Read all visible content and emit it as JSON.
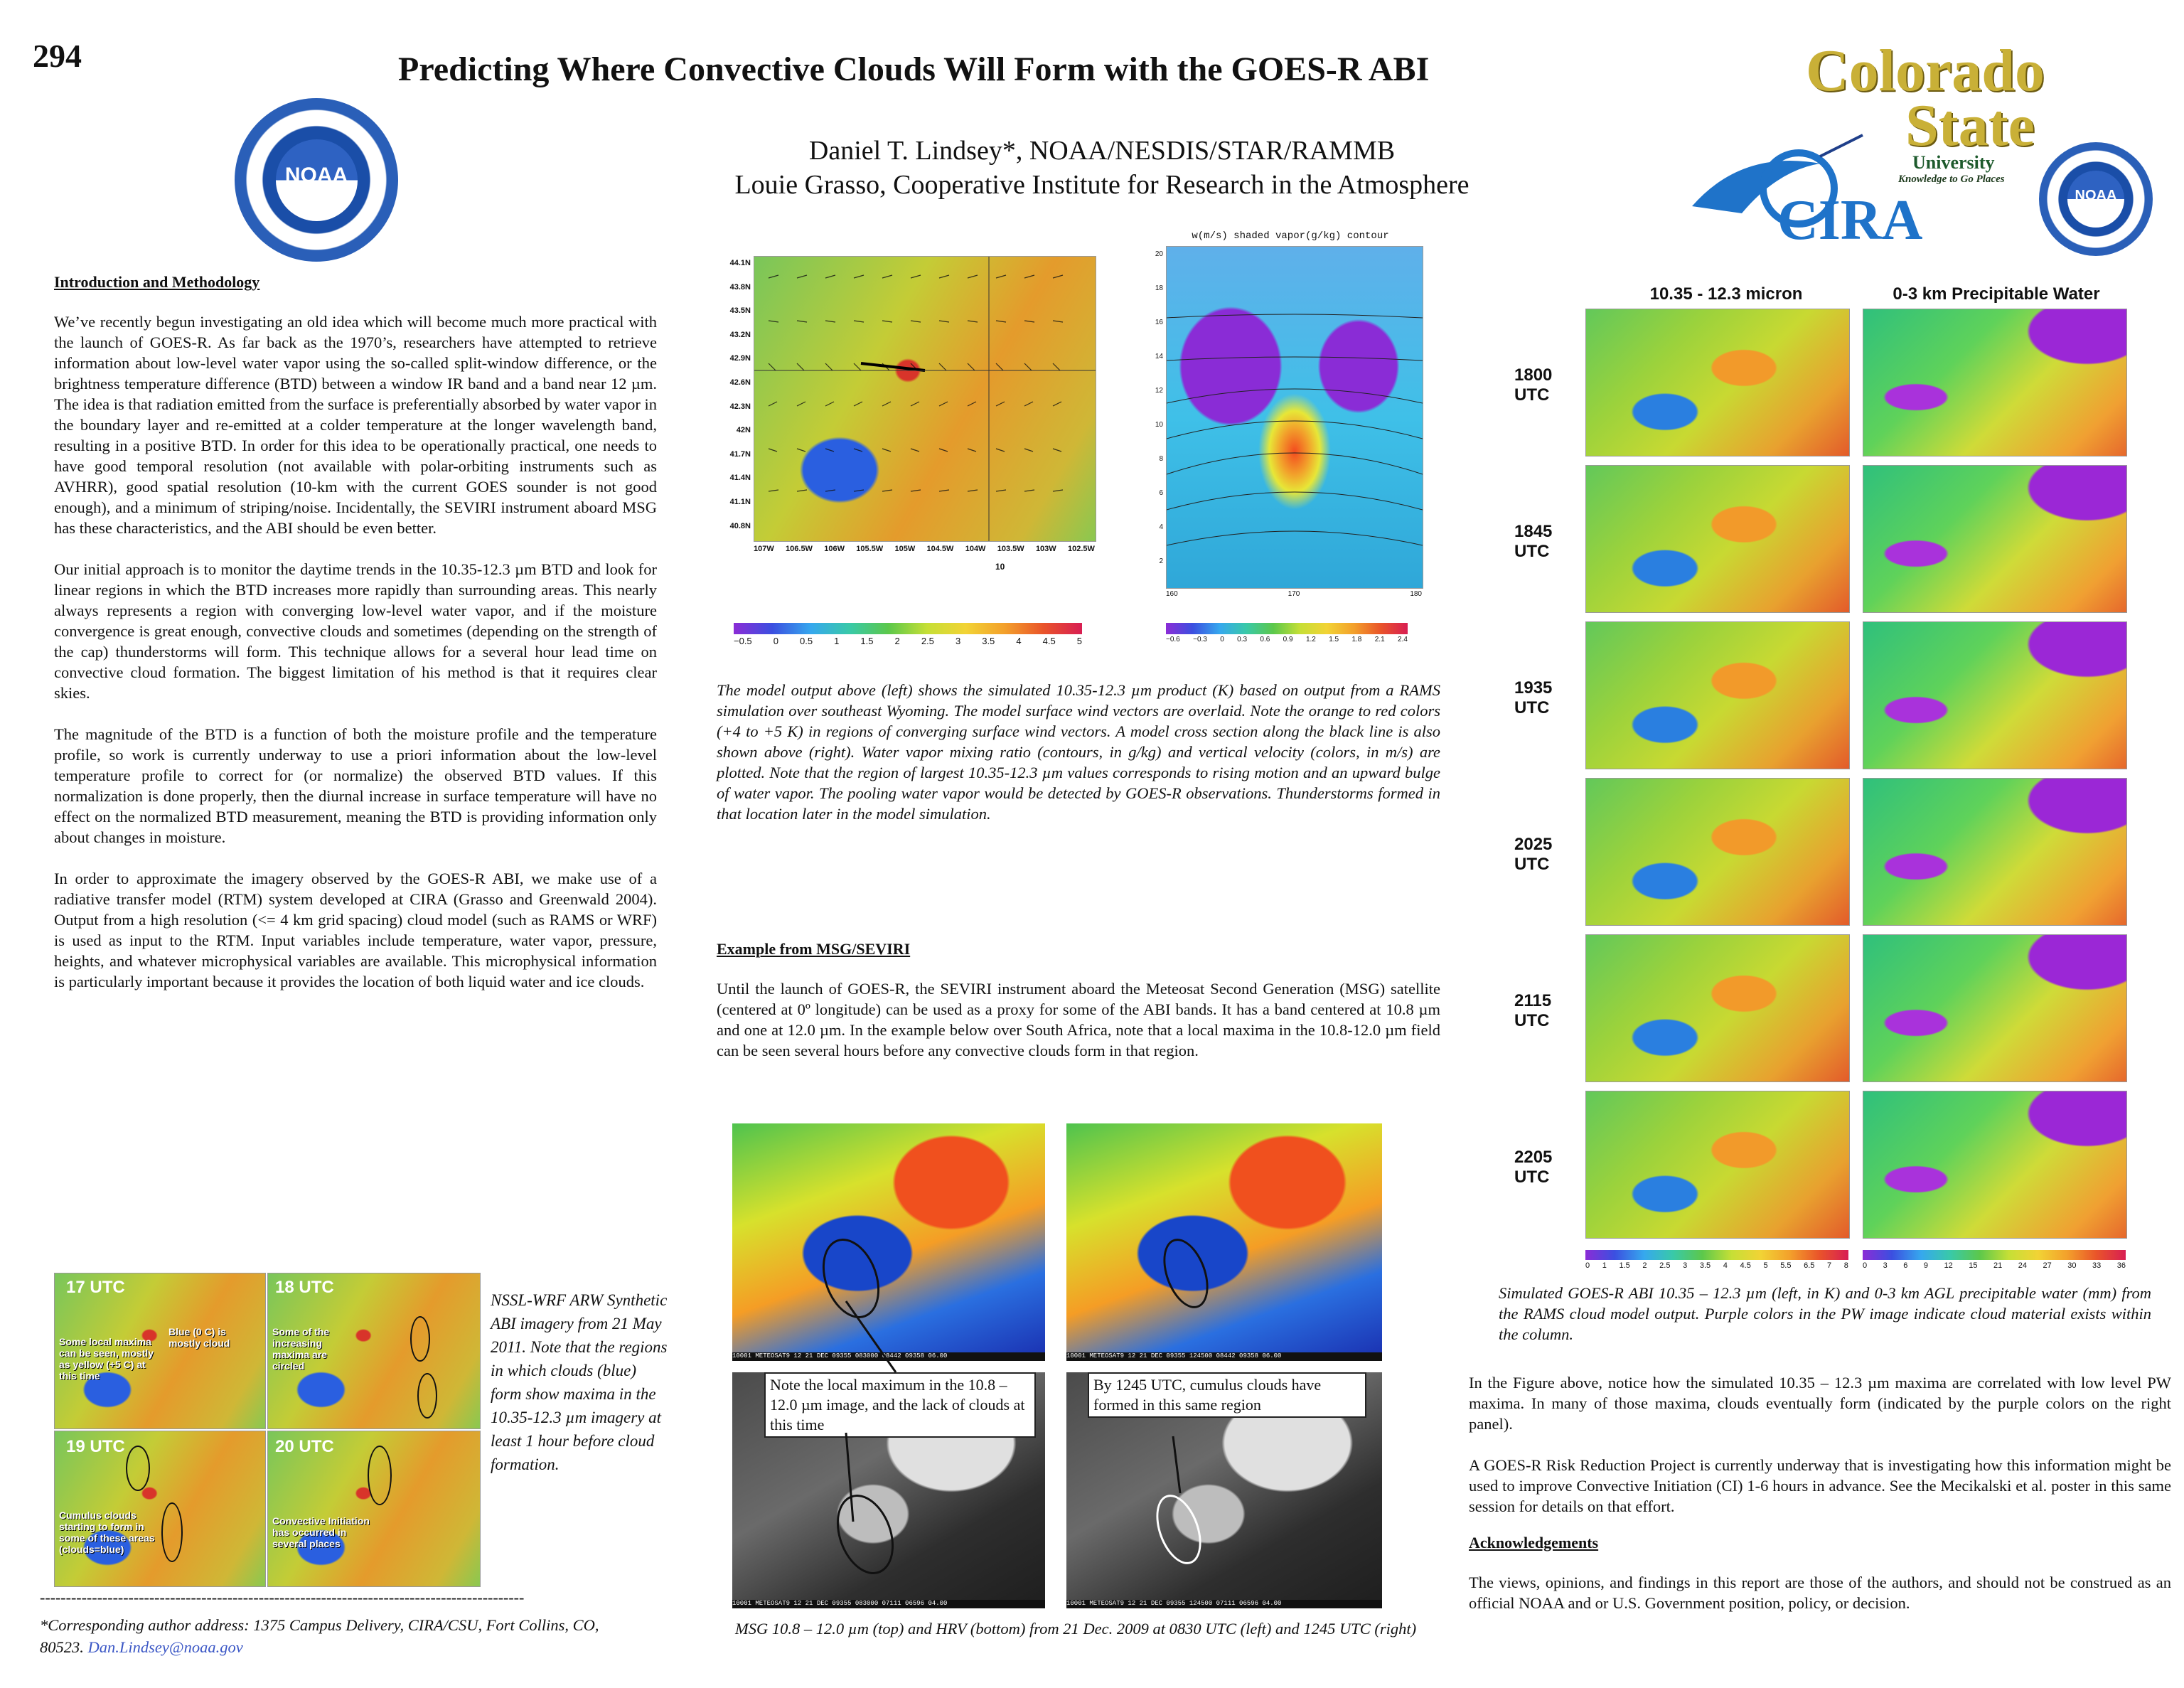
{
  "poster": {
    "number": "294",
    "title": "Predicting Where Convective Clouds Will Form with the GOES-R ABI",
    "authors": [
      "Daniel T. Lindsey*, NOAA/NESDIS/STAR/RAMMB",
      "Louie Grasso, Cooperative Institute for Research in the Atmosphere"
    ]
  },
  "logos": {
    "noaa_left": "NOAA",
    "csu_line1": "Colorado",
    "csu_line2": "State",
    "csu_line3": "University",
    "csu_tagline": "Knowledge to Go Places",
    "cira": "CIRA",
    "noaa_right": "NOAA"
  },
  "intro": {
    "heading": "Introduction and Methodology",
    "p1": "We’ve recently begun investigating an old idea which will become much more practical with the launch of GOES-R.  As far back as the 1970’s, researchers have attempted to retrieve information about low-level water vapor  using the so-called split-window difference, or the brightness temperature difference (BTD) between a window IR band and a band near 12 µm.  The idea is that radiation emitted from the surface is preferentially absorbed by water vapor in the boundary layer and re-emitted at a colder temperature at the longer wavelength band, resulting in a positive BTD.  In order for this idea to be operationally practical, one needs to have good temporal resolution (not available with polar-orbiting instruments such as AVHRR), good spatial resolution (10-km with the current GOES sounder is not good enough), and a minimum of striping/noise.  Incidentally, the SEVIRI instrument aboard MSG has these characteristics, and the ABI should be even better.",
    "p2": "Our initial approach is to monitor the daytime trends in the 10.35-12.3 µm BTD and look for linear regions in which the BTD increases more rapidly than surrounding areas.  This nearly always represents a region with converging low-level water vapor, and if the moisture convergence is great enough, convective clouds and sometimes (depending on the strength of the cap) thunderstorms will form.  This technique allows for a several hour lead time on convective cloud formation.  The biggest limitation of his method is that it requires clear skies.",
    "p3": "The magnitude of the BTD is a function of both  the moisture profile and the temperature profile, so work is currently underway to use a priori information about the low-level temperature profile to correct for (or normalize) the observed BTD values.   If this normalization is done properly, then the diurnal increase in surface temperature will have no effect on the normalized BTD measurement, meaning the BTD is providing information only about changes in moisture.",
    "p4": "In order to approximate the imagery observed by the GOES-R ABI, we make use of a radiative transfer model (RTM) system developed at CIRA (Grasso and Greenwald 2004).  Output from a high resolution (<= 4 km grid spacing) cloud model (such as RAMS or WRF) is used as input to the RTM.  Input variables include temperature, water vapor, pressure, heights, and whatever microphysical variables are available.   This microphysical information is particularly important because it provides the location of both liquid water and ice clouds."
  },
  "nssl": {
    "panels": [
      {
        "time": "17 UTC",
        "note": "Some local maxima can be seen, mostly as yellow (+5 C) at this time",
        "note2": "Blue (0 C) is mostly cloud"
      },
      {
        "time": "18 UTC",
        "note": "Some of the increasing maxima are circled",
        "note2": ""
      },
      {
        "time": "19 UTC",
        "note": "Cumulus clouds starting to form in some of these areas (clouds=blue)",
        "note2": ""
      },
      {
        "time": "20 UTC",
        "note": "Convective Initiation has occurred in several places",
        "note2": ""
      }
    ],
    "caption": "NSSL-WRF ARW Synthetic ABI imagery from 21 May 2011.  Note that the regions in which clouds (blue) form show maxima in the 10.35-12.3 µm imagery at least 1 hour before cloud formation."
  },
  "footer": {
    "dashes": "---------------------------------------------------------------------------------------------",
    "address": "*Corresponding author address: 1375 Campus Delivery, CIRA/CSU, Fort Collins, CO, 80523.",
    "email": "Dan.Lindsey@noaa.gov"
  },
  "model": {
    "left_lat_ticks": [
      "44.1N",
      "43.8N",
      "43.5N",
      "43.2N",
      "42.9N",
      "42.6N",
      "42.3N",
      "42N",
      "41.7N",
      "41.4N",
      "41.1N",
      "40.8N"
    ],
    "left_lon_ticks": [
      "107W",
      "106.5W",
      "106W",
      "105.5W",
      "105W",
      "104.5W",
      "104W",
      "103.5W",
      "103W",
      "102.5W"
    ],
    "vector_ref": "10",
    "left_cbar_ticks": [
      "−0.5",
      "0",
      "0.5",
      "1",
      "1.5",
      "2",
      "2.5",
      "3",
      "3.5",
      "4",
      "4.5",
      "5"
    ],
    "right_title": "w(m/s) shaded vapor(g/kg) contour",
    "right_y_ticks": [
      "20",
      "18",
      "16",
      "14",
      "12",
      "10",
      "8",
      "6",
      "4",
      "2"
    ],
    "right_x_ticks": [
      "160",
      "170",
      "180"
    ],
    "right_cbar_ticks": [
      "−0.6",
      "−0.3",
      "0",
      "0.3",
      "0.6",
      "0.9",
      "1.2",
      "1.5",
      "1.8",
      "2.1",
      "2.4"
    ],
    "caption": "The model output above (left) shows the simulated 10.35-12.3 µm product (K) based on output from a RAMS simulation over southeast Wyoming.  The model surface wind vectors are overlaid.  Note the orange to red colors (+4 to +5 K) in regions of converging surface wind vectors.  A model cross section along the black line is also shown above (right).  Water vapor mixing ratio (contours, in g/kg) and vertical velocity (colors, in m/s) are plotted.  Note that the region of largest 10.35-12.3 µm values corresponds to rising motion and an upward bulge of water vapor.  The pooling water vapor would be detected by GOES-R observations.   Thunderstorms formed in that location later in the model simulation."
  },
  "msg": {
    "heading": "Example from MSG/SEVIRI",
    "body": "Until the launch of GOES-R, the SEVIRI instrument aboard the Meteosat Second Generation (MSG) satellite (centered at 0º longitude) can be used as a proxy for some of the ABI bands.  It has a band centered at 10.8 µm and one at 12.0 µm.  In the example below over South Africa, note that a local maxima in the 10.8-12.0 µm field can be seen several hours before any convective clouds form in that region.",
    "callout_left": "Note the local maximum in the 10.8 – 12.0 µm image, and the lack of clouds at this time",
    "callout_right": "By 1245 UTC, cumulus clouds have formed in this same region",
    "strip_left_top": "10001 METEOSAT9 12 21 DEC 09355 083000 08442 09358 06.00",
    "strip_right_top": "10001 METEOSAT9 12 21 DEC 09355 124500 08442 09358 06.00",
    "strip_left_bot": "10001 METEOSAT9 12 21 DEC 09355 083000 07111 06596 04.00",
    "strip_right_bot": "10001 METEOSAT9 12 21 DEC 09355 124500 07111 06596 04.00",
    "caption": "MSG 10.8 – 12.0 µm (top) and HRV (bottom) from 21 Dec. 2009 at 0830 UTC (left) and 1245 UTC (right)"
  },
  "grid": {
    "col1": "10.35 - 12.3 micron",
    "col2": "0-3 km Precipitable Water",
    "rows": [
      "1800 UTC",
      "1845 UTC",
      "1935 UTC",
      "2025 UTC",
      "2115 UTC",
      "2205 UTC"
    ],
    "cbar_left": [
      "0",
      "1",
      "1.5",
      "2",
      "2.5",
      "3",
      "3.5",
      "4",
      "4.5",
      "5",
      "5.5",
      "6.5",
      "7",
      "8"
    ],
    "cbar_right": [
      "0",
      "3",
      "6",
      "9",
      "12",
      "15",
      "21",
      "24",
      "27",
      "30",
      "33",
      "36"
    ],
    "caption": "Simulated GOES-R ABI 10.35 – 12.3 µm (left, in K) and 0-3 km AGL precipitable water (mm) from the RAMS cloud model output.  Purple colors in the PW image indicate cloud material exists within the column."
  },
  "right": {
    "p1": "In the Figure above, notice how the simulated 10.35 – 12.3 µm  maxima are correlated with low level PW maxima.  In many of those maxima, clouds eventually form (indicated by the purple colors on the right panel).",
    "p2": "A GOES-R Risk Reduction Project is currently underway that is investigating how this information might be used to improve Convective Initiation (CI) 1-6 hours in advance.  See the Mecikalski et al. poster in this same session for details on that effort.",
    "ack_heading": "Acknowledgements",
    "ack": "The views, opinions, and findings in this report are those of the authors, and should not be construed as an official NOAA and or U.S. Government position, policy, or decision."
  }
}
